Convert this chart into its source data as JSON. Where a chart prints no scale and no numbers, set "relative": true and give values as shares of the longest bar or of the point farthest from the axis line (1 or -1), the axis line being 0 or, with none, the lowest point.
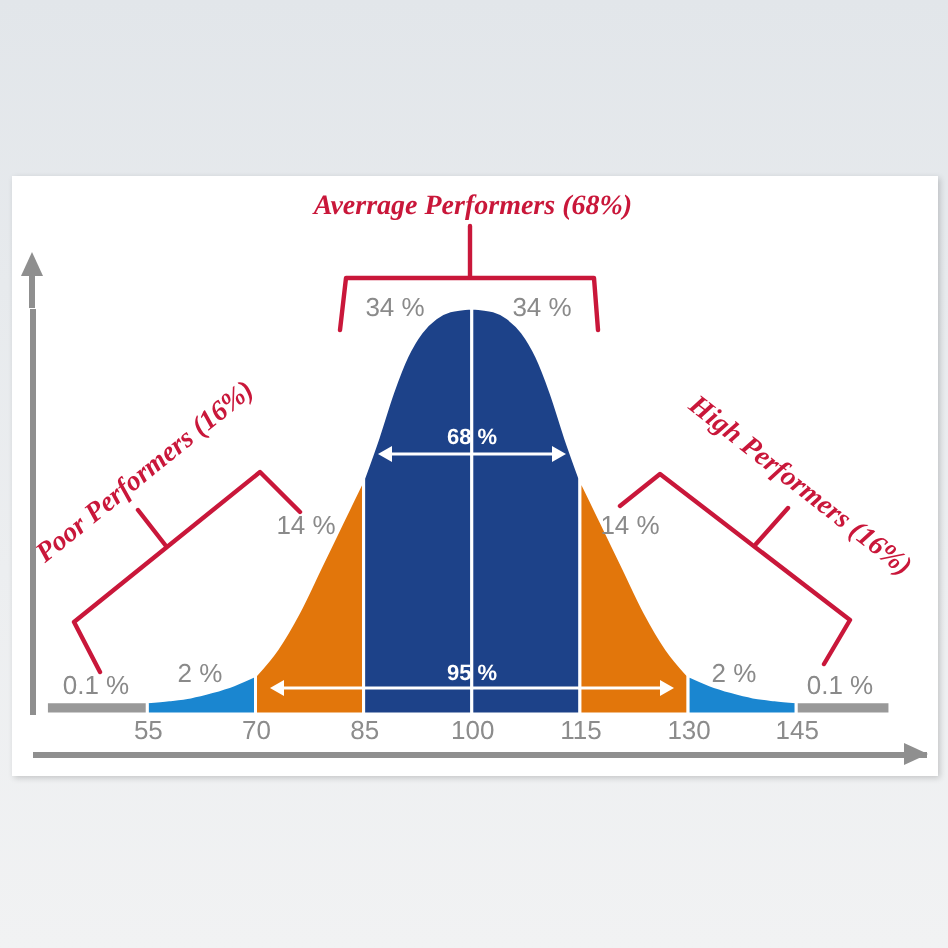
{
  "chart_data": {
    "type": "area",
    "title": "Averrage Performers (68%)",
    "relative": true,
    "xlim": [
      39,
      163
    ],
    "xticks": [
      55,
      70,
      85,
      100,
      115,
      130,
      145
    ],
    "series": [
      {
        "color": "#999999",
        "x": [
          41,
          55
        ],
        "values": [
          0.03,
          0.03
        ]
      },
      {
        "color": "#1a86d0",
        "x": [
          55,
          58,
          61,
          64,
          67,
          70
        ],
        "values": [
          0.03,
          0.035,
          0.042,
          0.055,
          0.072,
          0.095
        ]
      },
      {
        "color": "#e2760b",
        "x": [
          70,
          73,
          76,
          79,
          82,
          85
        ],
        "values": [
          0.095,
          0.16,
          0.25,
          0.36,
          0.47,
          0.58
        ]
      },
      {
        "color": "#1d4289",
        "x": [
          85,
          87,
          89,
          91,
          93,
          95,
          97,
          100
        ],
        "values": [
          0.58,
          0.68,
          0.79,
          0.88,
          0.94,
          0.975,
          0.993,
          1.0
        ]
      },
      {
        "color": "#1d4289",
        "x": [
          100,
          103,
          105,
          107,
          109,
          111,
          113,
          115
        ],
        "values": [
          1.0,
          0.993,
          0.975,
          0.94,
          0.88,
          0.79,
          0.68,
          0.58
        ]
      },
      {
        "color": "#e2760b",
        "x": [
          115,
          118,
          121,
          124,
          127,
          130
        ],
        "values": [
          0.58,
          0.47,
          0.36,
          0.25,
          0.16,
          0.095
        ]
      },
      {
        "color": "#1a86d0",
        "x": [
          130,
          133,
          136,
          139,
          142,
          145
        ],
        "values": [
          0.095,
          0.072,
          0.055,
          0.042,
          0.035,
          0.03
        ]
      },
      {
        "color": "#999999",
        "x": [
          145,
          158
        ],
        "values": [
          0.03,
          0.03
        ]
      }
    ],
    "annotations": [
      "Poor Performers (16%)",
      "High Performers (16%)",
      "34 %",
      "34 %",
      "68 %",
      "95 %",
      "14 %",
      "14 %",
      "2 %",
      "2 %",
      "0.1 %",
      "0.1 %"
    ]
  }
}
